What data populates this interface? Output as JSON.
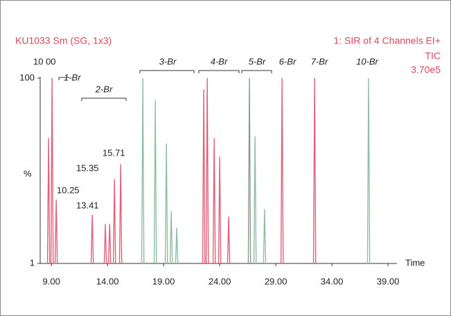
{
  "chart_data": {
    "type": "peaks",
    "title": "KU1033 Sm (SG, 1x3)",
    "subtitle": [
      "1: SIR of 4 Channels EI+",
      "TIC",
      "3.70e5"
    ],
    "x_label": "Time",
    "y_label": "%",
    "xlim": [
      8,
      39.8
    ],
    "ylim": [
      1,
      100
    ],
    "xticks": [
      {
        "value": 9,
        "label": "9.00"
      },
      {
        "value": 14,
        "label": "14.00"
      },
      {
        "value": 19,
        "label": "19.00"
      },
      {
        "value": 24,
        "label": "24.00"
      },
      {
        "value": 29,
        "label": "29.00"
      },
      {
        "value": 34,
        "label": "34.00"
      },
      {
        "value": 39,
        "label": "39.00"
      }
    ],
    "yticks": [
      1,
      100
    ],
    "x": [
      8.75,
      9.06,
      9.43,
      12.64,
      13.81,
      14.19,
      14.62,
      15.17,
      17.15,
      18.26,
      19.25,
      19.68,
      20.17,
      22.58,
      22.89,
      23.51,
      24.0,
      24.8,
      26.65,
      27.15,
      28.0,
      29.56,
      32.46,
      37.27
    ],
    "values": [
      68,
      100,
      35,
      27,
      22,
      22,
      46,
      54,
      100,
      88,
      65,
      29,
      20,
      94,
      100,
      68,
      58,
      26,
      100,
      69,
      30,
      100,
      100,
      100
    ],
    "colors": [
      "#e0607a",
      "#e0607a",
      "#e0607a",
      "#e0607a",
      "#e0607a",
      "#e0607a",
      "#e0607a",
      "#e0607a",
      "#8fbf9f",
      "#8fbf9f",
      "#8fbf9f",
      "#8fbf9f",
      "#8fbf9f",
      "#e0607a",
      "#e0607a",
      "#e0607a",
      "#e0607a",
      "#e0607a",
      "#8a9a90",
      "#8fbf9f",
      "#8fbf9f",
      "#e0607a",
      "#e0607a",
      "#8fbf9f"
    ],
    "annotations": [
      "10 00",
      "10.25",
      "13.41",
      "15.35",
      "15.71"
    ],
    "groups": [
      "1-Br",
      "2-Br",
      "3-Br",
      "4-Br",
      "5-Br",
      "6-Br",
      "7-Br",
      "10-Br"
    ]
  }
}
